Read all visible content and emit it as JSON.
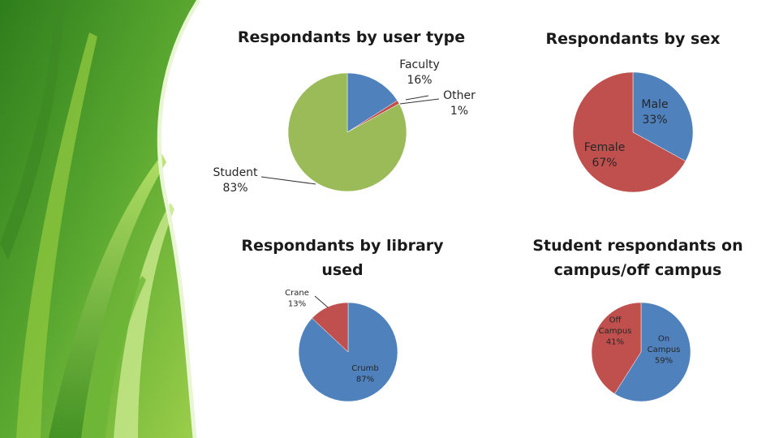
{
  "chart_data": [
    {
      "type": "pie",
      "title": "Respondants by user type",
      "labels": [
        "Faculty",
        "Other",
        "Student"
      ],
      "values": [
        16,
        1,
        83
      ],
      "value_labels": [
        "16%",
        "1%",
        "83%"
      ],
      "colors": [
        "#4f81bd",
        "#c0504d",
        "#9bbb59"
      ]
    },
    {
      "type": "pie",
      "title": "Respondants by sex",
      "labels": [
        "Male",
        "Female"
      ],
      "values": [
        33,
        67
      ],
      "value_labels": [
        "33%",
        "67%"
      ],
      "colors": [
        "#4f81bd",
        "#c0504d"
      ]
    },
    {
      "type": "pie",
      "title": "Respondants by library used",
      "labels": [
        "Crumb",
        "Crane"
      ],
      "values": [
        87,
        13
      ],
      "value_labels": [
        "87%",
        "13%"
      ],
      "colors": [
        "#4f81bd",
        "#c0504d"
      ]
    },
    {
      "type": "pie",
      "title": "Student respondants on campus/off campus",
      "labels": [
        "On Campus",
        "Off Campus"
      ],
      "values": [
        59,
        41
      ],
      "value_labels": [
        "59%",
        "41%"
      ],
      "colors": [
        "#4f81bd",
        "#c0504d"
      ]
    }
  ]
}
